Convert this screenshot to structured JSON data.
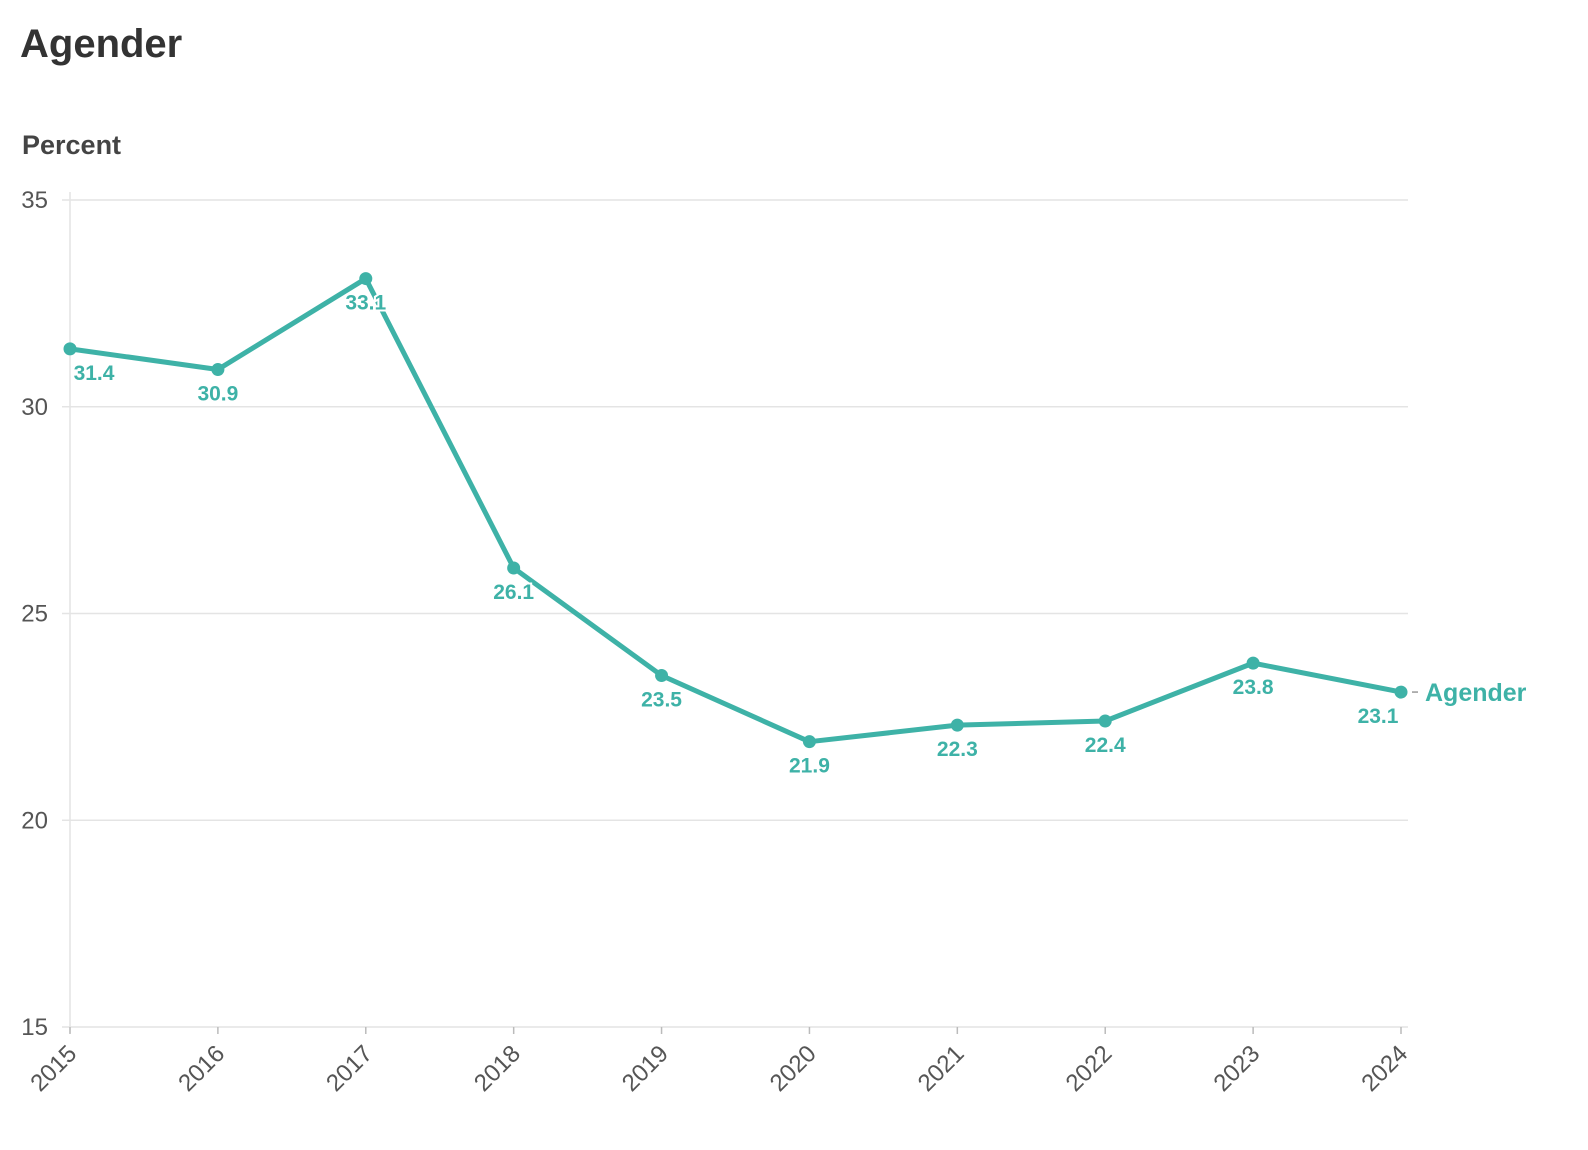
{
  "chart_data": {
    "type": "line",
    "title": "Agender",
    "ylabel": "Percent",
    "xlabel": "",
    "x": [
      "2015",
      "2016",
      "2017",
      "2018",
      "2019",
      "2020",
      "2021",
      "2022",
      "2023",
      "2024"
    ],
    "series": [
      {
        "name": "Agender",
        "values": [
          31.4,
          30.9,
          33.1,
          26.1,
          23.5,
          21.9,
          22.3,
          22.4,
          23.8,
          23.1
        ]
      }
    ],
    "ylim": [
      15,
      35
    ],
    "yticks": [
      15,
      20,
      25,
      30,
      35
    ],
    "grid": true,
    "color": "#3eb2a7"
  }
}
